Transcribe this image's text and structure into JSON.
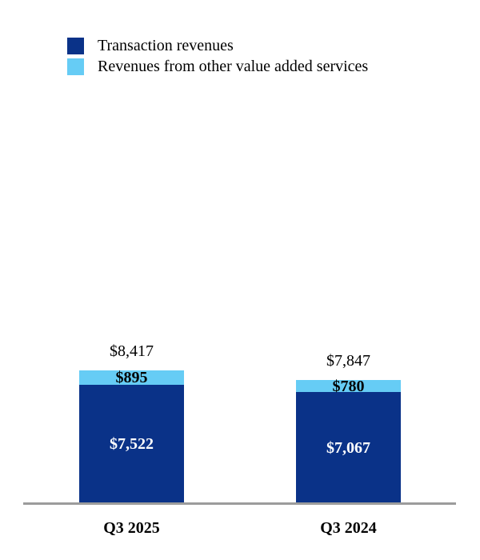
{
  "chart_data": {
    "type": "bar",
    "variant": "stacked-column",
    "title": "",
    "categories": [
      "Q3 2025",
      "Q3 2024"
    ],
    "series": [
      {
        "name": "Transaction revenues",
        "color": "#0a3288",
        "values": [
          7522,
          7067
        ],
        "value_labels": [
          "$7,522",
          "$7,067"
        ],
        "label_color": "#ffffff"
      },
      {
        "name": "Revenues from other value added services",
        "color": "#66ccf5",
        "values": [
          895,
          780
        ],
        "value_labels": [
          "$895",
          "$780"
        ],
        "label_color": "#000000"
      }
    ],
    "totals": {
      "values": [
        8417,
        7847
      ],
      "labels": [
        "$8,417",
        "$7,847"
      ]
    },
    "legend_position": "top-left",
    "grid": false,
    "ylim": [
      0,
      8417
    ],
    "axis": {
      "baseline_color": "#9c9c9c"
    }
  }
}
